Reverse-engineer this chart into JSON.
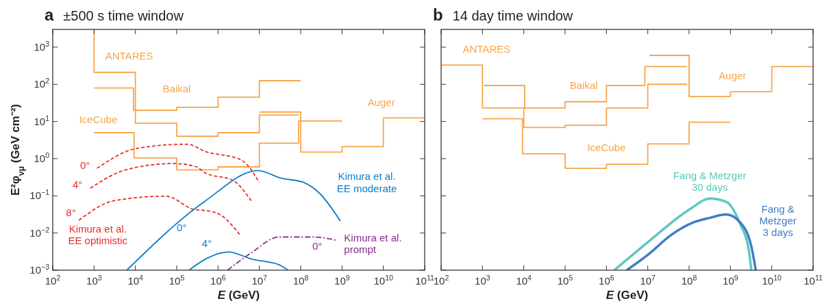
{
  "chart_data": [
    {
      "type": "line",
      "title": "a ±500 s time window",
      "xlabel": "E (GeV)",
      "ylabel": "E²φ$_{νμ}$ (GeV cm⁻²)",
      "log": "xy",
      "grid": false,
      "xlim": [
        100,
        100000000000
      ],
      "ylim": [
        0.001,
        3000
      ],
      "xticks": [
        {
          "value": 100,
          "label": "10$^{2}$"
        },
        {
          "value": 1000,
          "label": "10$^{3}$"
        },
        {
          "value": 10000,
          "label": "10$^{4}$"
        },
        {
          "value": 100000,
          "label": "10$^{5}$"
        },
        {
          "value": 1000000,
          "label": "10$^{6}$"
        },
        {
          "value": 10000000,
          "label": "10$^{7}$"
        },
        {
          "value": 100000000,
          "label": "10$^{8}$"
        },
        {
          "value": 1000000000,
          "label": "10$^{9}$"
        },
        {
          "value": 10000000000,
          "label": "10$^{10}$"
        },
        {
          "value": 100000000000,
          "label": "10$^{11}$"
        }
      ],
      "yticks": [
        {
          "value": 0.001,
          "label": "10$^{−3}$"
        },
        {
          "value": 0.01,
          "label": "10$^{−2}$"
        },
        {
          "value": 0.1,
          "label": "10$^{−1}$"
        },
        {
          "value": 1,
          "label": "10$^{0}$"
        },
        {
          "value": 10,
          "label": "10$^{1}$"
        },
        {
          "value": 100,
          "label": "10$^{2}$"
        },
        {
          "value": 1000,
          "label": "10$^{3}$"
        }
      ],
      "annotations": [
        "Kimura et al.\nEE optimistic",
        "Kimura et al.\nEE moderate",
        "Kimura et al.\nprompt"
      ],
      "series": [
        {
          "name": "ANTARES",
          "type": "step",
          "color": "#f7a54a",
          "x": [
            1000,
            1000,
            10000,
            100000,
            1000000,
            10000000,
            89000000
          ],
          "values": [
            3000,
            210,
            9,
            4,
            5,
            15,
            15
          ]
        },
        {
          "name": "Baikal",
          "type": "step",
          "color": "#f7a54a",
          "x": [
            1000,
            9000,
            100000,
            1000000,
            10000000,
            100000000
          ],
          "values": [
            80,
            20,
            24,
            45,
            125,
            125
          ]
        },
        {
          "name": "IceCube",
          "type": "step",
          "color": "#f7a54a",
          "x": [
            1000,
            9300,
            100000,
            1000000,
            10000000,
            89000000,
            1000000000
          ],
          "values": [
            5,
            1.05,
            0.5,
            0.6,
            2.6,
            10.3,
            10.3
          ]
        },
        {
          "name": "Auger",
          "type": "step",
          "color": "#f7a54a",
          "x": [
            10000000,
            100000000,
            1000000000,
            10000000000,
            100000000000
          ],
          "values": [
            18,
            1.5,
            2.1,
            12.5,
            12.5
          ]
        },
        {
          "name": "0°",
          "type": "line",
          "line_style": "dashed",
          "color": "#ee2a2a",
          "x": [
            1175,
            11000,
            180000,
            500000,
            3400000,
            4900000,
            9800000
          ],
          "values": [
            0.55,
            1.9,
            2.45,
            1.55,
            0.95,
            0.71,
            0.23
          ]
        },
        {
          "name": "4°",
          "type": "line",
          "line_style": "dashed",
          "color": "#ee2a2a",
          "x": [
            813,
            5800,
            83000,
            280000,
            500000,
            2300000,
            6300000
          ],
          "values": [
            0.16,
            0.5,
            0.74,
            0.62,
            0.41,
            0.26,
            0.074
          ]
        },
        {
          "name": "8°",
          "type": "line",
          "line_style": "dashed",
          "color": "#ee2a2a",
          "x": [
            430,
            3100,
            56000,
            260000,
            500000,
            1070000,
            3400000
          ],
          "values": [
            0.022,
            0.074,
            0.098,
            0.043,
            0.04,
            0.032,
            0.0089
          ]
        },
        {
          "name": "0°",
          "type": "line",
          "line_style": "solid",
          "color": "#0a7dc8",
          "x": [
            6200,
            500000,
            9300000,
            33000000,
            117000000,
            290000000,
            910000000
          ],
          "values": [
            0.001,
            0.074,
            0.48,
            0.3,
            0.23,
            0.115,
            0.021
          ]
        },
        {
          "name": "4°",
          "type": "line",
          "line_style": "solid",
          "color": "#0a7dc8",
          "x": [
            200000,
            500000,
            1800000,
            6300000,
            30000000,
            49000000
          ],
          "values": [
            0.001,
            0.002,
            0.0031,
            0.002,
            0.0014,
            0.001
          ]
        },
        {
          "name": "0°",
          "type": "line",
          "line_style": "dashdot",
          "color": "#8b2a8e",
          "x": [
            1700000,
            6300000,
            30000000,
            220000000,
            760000000
          ],
          "values": [
            0.001,
            0.0029,
            0.0078,
            0.0078,
            0.0063
          ]
        }
      ]
    },
    {
      "type": "line",
      "title": "b 14 day time window",
      "xlabel": "E (GeV)",
      "log": "xy",
      "grid": false,
      "tick_labels": "x",
      "xlim": [
        100,
        100000000000
      ],
      "ylim": [
        0.001,
        3000
      ],
      "xticks": [
        {
          "value": 100,
          "label": "10$^{2}$"
        },
        {
          "value": 1000,
          "label": "10$^{3}$"
        },
        {
          "value": 10000,
          "label": "10$^{4}$"
        },
        {
          "value": 100000,
          "label": "10$^{5}$"
        },
        {
          "value": 1000000,
          "label": "10$^{6}$"
        },
        {
          "value": 10000000,
          "label": "10$^{7}$"
        },
        {
          "value": 100000000,
          "label": "10$^{8}$"
        },
        {
          "value": 1000000000,
          "label": "10$^{9}$"
        },
        {
          "value": 10000000000,
          "label": "10$^{10}$"
        },
        {
          "value": 100000000000,
          "label": "10$^{11}$"
        }
      ],
      "yticks": [
        {
          "value": 0.001,
          "label": null
        },
        {
          "value": 0.01,
          "label": null
        },
        {
          "value": 0.1,
          "label": null
        },
        {
          "value": 1,
          "label": null
        },
        {
          "value": 10,
          "label": null
        },
        {
          "value": 100,
          "label": null
        },
        {
          "value": 1000,
          "label": null
        }
      ],
      "series": [
        {
          "name": "ANTARES",
          "type": "step",
          "color": "#f7a54a",
          "x": [
            100,
            1000,
            10000,
            100000,
            1000000,
            10000000,
            90000000
          ],
          "values": [
            330,
            23,
            6.9,
            7.9,
            23,
            100,
            100
          ]
        },
        {
          "name": "Baikal",
          "type": "step",
          "color": "#f7a54a",
          "x": [
            1100,
            10500,
            100000,
            1000000,
            8500000,
            90000000
          ],
          "values": [
            93,
            23,
            34,
            93,
            300,
            300
          ]
        },
        {
          "name": "IceCube",
          "type": "step",
          "color": "#f7a54a",
          "x": [
            1000,
            9300,
            100000,
            1000000,
            10000000,
            100000000,
            1000000000
          ],
          "values": [
            11.8,
            1.35,
            0.55,
            0.71,
            2.5,
            9.6,
            9.6
          ]
        },
        {
          "name": "Auger",
          "type": "step",
          "color": "#f7a54a",
          "x": [
            11000000,
            100000000,
            1000000000,
            10000000000,
            100000000000
          ],
          "values": [
            600,
            47,
            63,
            300,
            300
          ]
        },
        {
          "name": "Fang & Metzger\n30 days",
          "type": "line",
          "line_style": "solid",
          "color": "#5bc8be",
          "x": [
            1550000,
            10500000,
            102000000,
            320000000,
            790000000,
            1700000000,
            2800000000,
            3200000000
          ],
          "values": [
            0.001,
            0.0059,
            0.043,
            0.085,
            0.069,
            0.018,
            0.0033,
            0.001
          ]
        },
        {
          "name": "Fang &\nMetzger\n3 days",
          "type": "line",
          "line_style": "solid",
          "color": "#3f7cc6",
          "x": [
            3100000,
            10500000,
            37000000,
            130000000,
            320000000,
            790000000,
            1700000000,
            3200000000,
            4100000000
          ],
          "values": [
            0.001,
            0.0027,
            0.0089,
            0.0195,
            0.0257,
            0.0316,
            0.0195,
            0.0044,
            0.001
          ]
        }
      ]
    }
  ]
}
